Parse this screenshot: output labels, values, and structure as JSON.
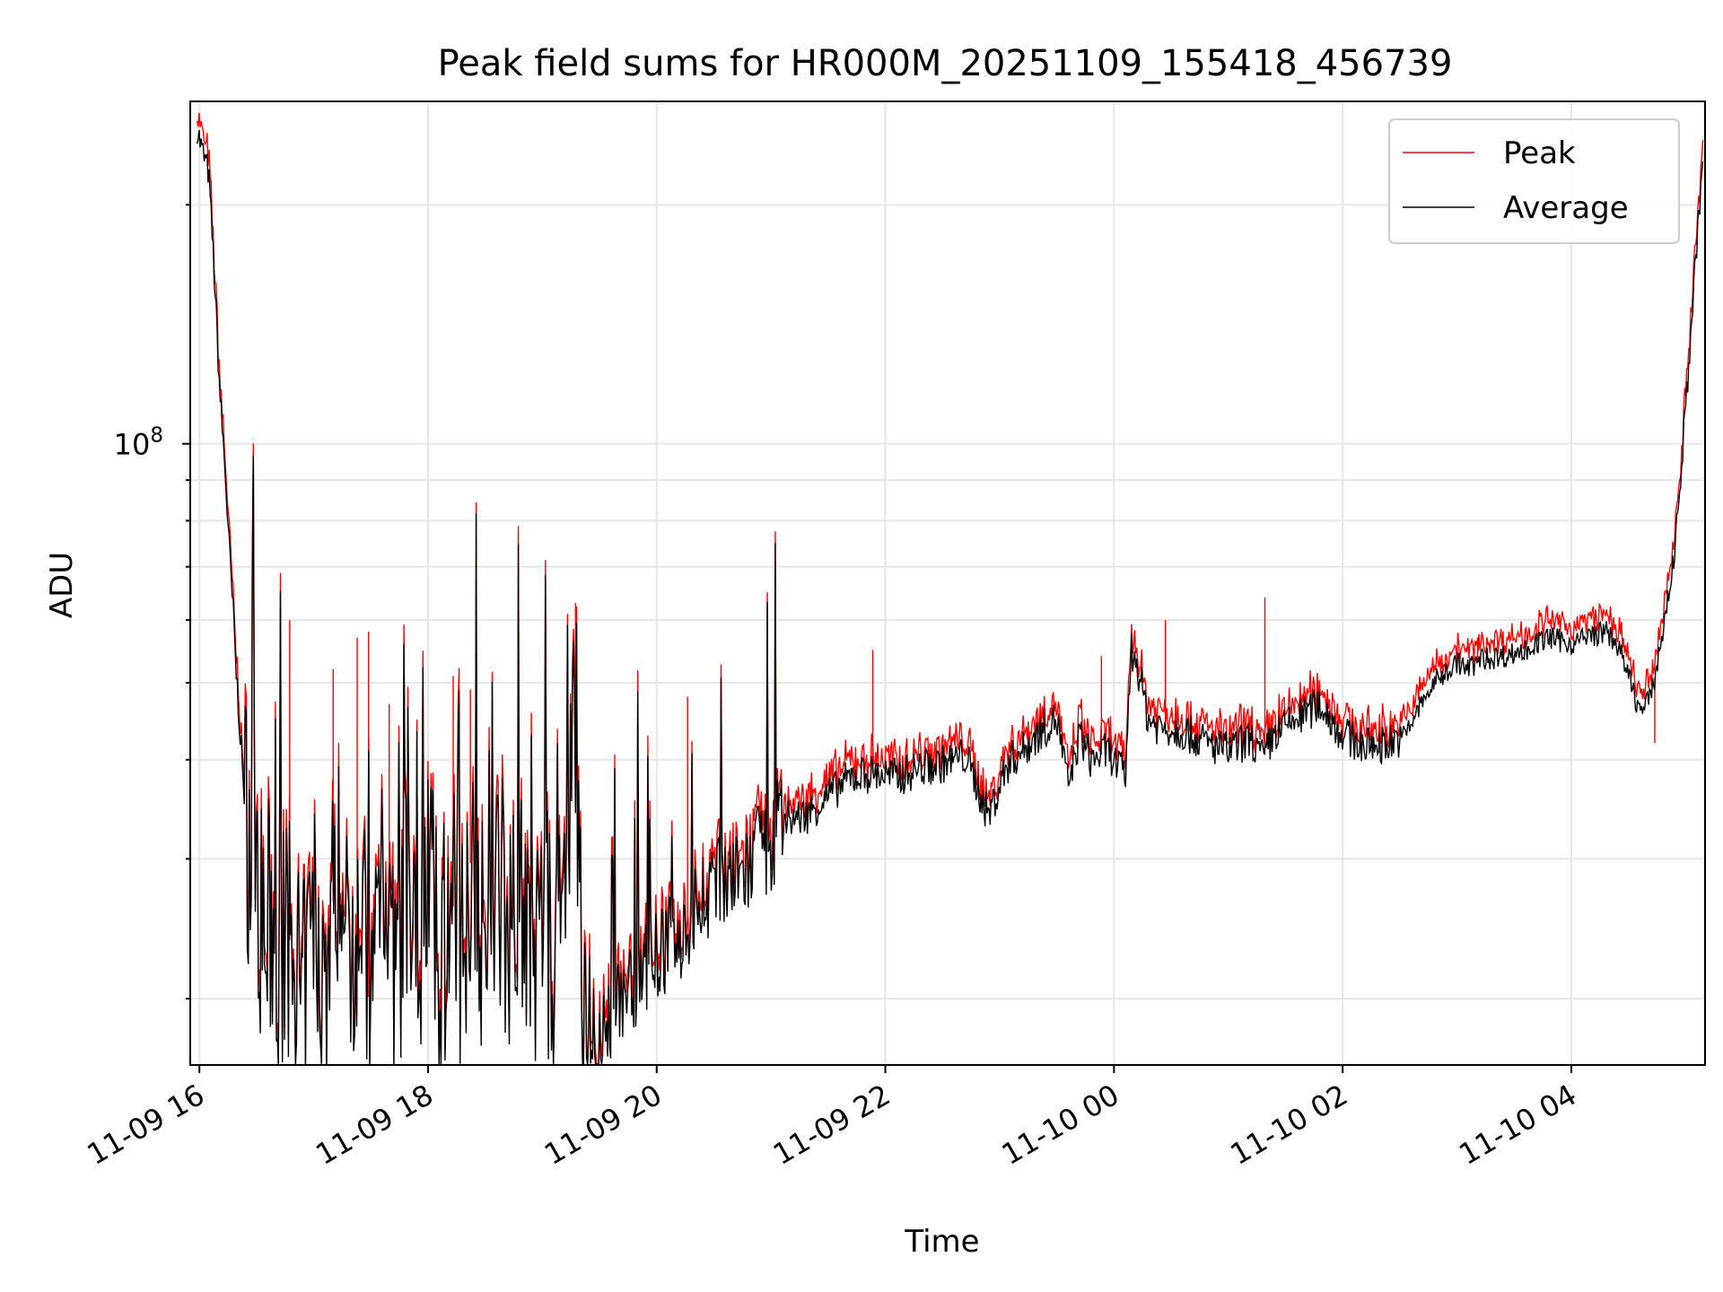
{
  "chart_data": {
    "type": "line",
    "title": "Peak field sums for HR000M_20251109_155418_456739",
    "xlabel": "Time",
    "ylabel": "ADU",
    "yscale": "log",
    "ylim": [
      16500000,
      270000000
    ],
    "xlim_hours": [
      -0.08,
      13.17
    ],
    "x_ticks": [
      {
        "label": "11-09 16",
        "h": 0
      },
      {
        "label": "11-09 18",
        "h": 2
      },
      {
        "label": "11-09 20",
        "h": 4
      },
      {
        "label": "11-09 22",
        "h": 6
      },
      {
        "label": "11-10 00",
        "h": 8
      },
      {
        "label": "11-10 02",
        "h": 10
      },
      {
        "label": "11-10 04",
        "h": 12
      }
    ],
    "y_ticks": [
      {
        "base": "10",
        "exp": "8",
        "value": 100000000
      }
    ],
    "grid": true,
    "legend": {
      "position": "top-right",
      "entries": [
        {
          "name": "Peak",
          "color": "#ff0000"
        },
        {
          "name": "Average",
          "color": "#000000"
        }
      ]
    },
    "series": [
      {
        "name": "Peak",
        "color": "#ff0000",
        "spikes": [
          [
            0.79,
            60000000
          ],
          [
            1.48,
            58000000
          ],
          [
            1.38,
            57000000
          ],
          [
            1.17,
            52000000
          ],
          [
            2.22,
            51000000
          ],
          [
            2.37,
            49000000
          ],
          [
            1.66,
            47000000
          ],
          [
            3.29,
            63000000
          ],
          [
            4.27,
            48000000
          ],
          [
            5.89,
            55000000
          ],
          [
            8.45,
            60000000
          ],
          [
            9.32,
            64000000
          ],
          [
            7.89,
            54000000
          ],
          [
            11.18,
            57000000
          ],
          [
            12.73,
            42000000
          ]
        ]
      },
      {
        "name": "Average",
        "color": "#000000",
        "spikes": [],
        "x": [
          -0.02,
          0.02,
          0.08,
          0.12,
          0.18,
          0.22,
          0.27,
          0.3,
          0.32,
          0.35,
          0.38,
          0.42,
          0.45,
          0.5,
          0.55,
          0.6,
          0.7,
          0.8,
          0.9,
          1.0,
          1.1,
          1.2,
          1.3,
          1.4,
          1.5,
          1.6,
          1.7,
          1.8,
          1.9,
          2.0,
          2.1,
          2.2,
          2.3,
          2.4,
          2.5,
          2.6,
          2.7,
          2.8,
          2.9,
          3.0,
          3.1,
          3.2,
          3.25,
          3.3,
          3.35,
          3.4,
          3.5,
          3.6,
          3.7,
          3.8,
          3.9,
          4.0,
          4.1,
          4.2,
          4.3,
          4.4,
          4.5,
          4.6,
          4.7,
          4.8,
          4.9,
          5.0,
          5.05,
          5.1,
          5.3,
          5.5,
          5.7,
          5.9,
          6.1,
          6.3,
          6.5,
          6.7,
          6.9,
          7.0,
          7.05,
          7.1,
          7.2,
          7.3,
          7.4,
          7.5,
          7.6,
          7.7,
          7.8,
          7.95,
          8.1,
          8.15,
          8.2,
          8.3,
          8.4,
          8.6,
          8.8,
          9.0,
          9.2,
          9.3,
          9.4,
          9.6,
          9.8,
          10.0,
          10.2,
          10.4,
          10.55,
          10.65,
          10.8,
          11.0,
          11.1,
          11.2,
          11.4,
          11.6,
          11.8,
          12.0,
          12.2,
          12.3,
          12.4,
          12.5,
          12.6,
          12.7,
          12.8,
          12.9,
          13.0,
          13.1,
          13.15
        ],
        "y": [
          250000000,
          235000000,
          220000000,
          175000000,
          115000000,
          95000000,
          70000000,
          60000000,
          52000000,
          45000000,
          38000000,
          33000000,
          29000000,
          31000000,
          23000000,
          25000000,
          21000000,
          24000000,
          19000000,
          26000000,
          20000000,
          30000000,
          22000000,
          28000000,
          18500000,
          34000000,
          20000000,
          26000000,
          22000000,
          31000000,
          20000000,
          27000000,
          23000000,
          33000000,
          21000000,
          28000000,
          24000000,
          30000000,
          20000000,
          27000000,
          21000000,
          25000000,
          38000000,
          42000000,
          17500000,
          18000000,
          17000000,
          19000000,
          20000000,
          21000000,
          22000000,
          22500000,
          23500000,
          24000000,
          25000000,
          27000000,
          27500000,
          28500000,
          28000000,
          29000000,
          31000000,
          30000000,
          33000000,
          33500000,
          34000000,
          36000000,
          38000000,
          38500000,
          38000000,
          39000000,
          39500000,
          40500000,
          34000000,
          37000000,
          39000000,
          40000000,
          41000000,
          42500000,
          44000000,
          45000000,
          37000000,
          43000000,
          40000000,
          41000000,
          38000000,
          55000000,
          53000000,
          45000000,
          44000000,
          43500000,
          42000000,
          41000000,
          42500000,
          40000000,
          43000000,
          45000000,
          47000000,
          43000000,
          41500000,
          42000000,
          43000000,
          46000000,
          50000000,
          53000000,
          52000000,
          53500000,
          54000000,
          55000000,
          57000000,
          56000000,
          57500000,
          58000000,
          56000000,
          51000000,
          46000000,
          48000000,
          58000000,
          72000000,
          110000000,
          180000000,
          225000000
        ]
      }
    ]
  }
}
